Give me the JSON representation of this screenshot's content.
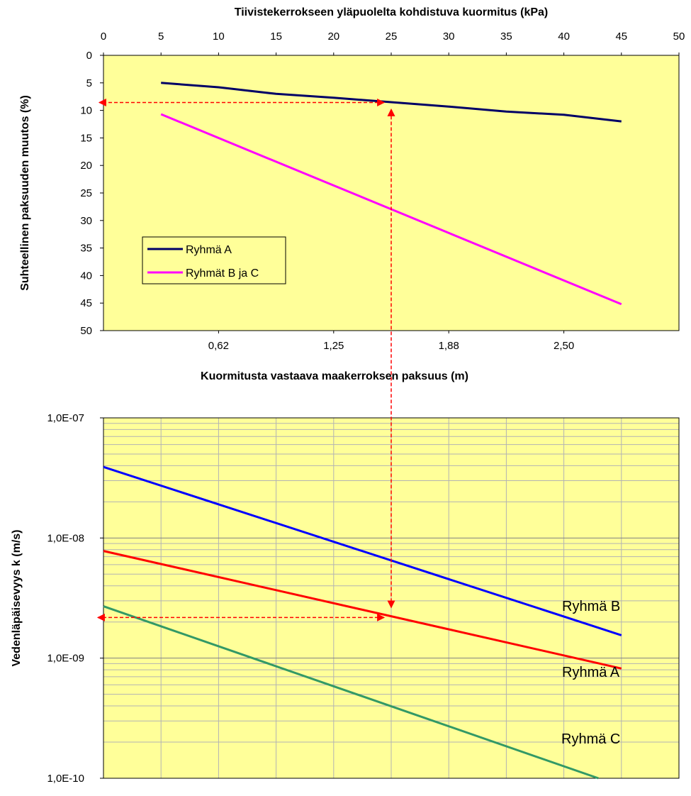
{
  "chart_data": [
    {
      "type": "line",
      "title": "Tiivistekerrokseen yläpuolelta kohdistuva kuormitus (kPa)",
      "ylabel": "Suhteellinen paksuuden muutos (%)",
      "xlabel": "Kuormitusta vastaava maakerroksen paksuus (m)",
      "x_top_ticks": [
        "0",
        "5",
        "10",
        "15",
        "20",
        "25",
        "30",
        "35",
        "40",
        "45",
        "50"
      ],
      "x_bottom_ticks": [
        "0,62",
        "1,25",
        "1,88",
        "2,50"
      ],
      "y_ticks": [
        "0",
        "5",
        "10",
        "15",
        "20",
        "25",
        "30",
        "35",
        "40",
        "45",
        "50"
      ],
      "xlim": [
        0,
        50
      ],
      "ylim": [
        0,
        50
      ],
      "y_inverted": true,
      "background": "#ffff99",
      "legend_position": "middle-left",
      "series": [
        {
          "name": "Ryhmä A",
          "color": "#000066",
          "x": [
            5,
            10,
            15,
            20,
            25,
            30,
            35,
            40,
            45
          ],
          "y": [
            5,
            5.8,
            7,
            7.7,
            8.5,
            9.3,
            10.2,
            10.8,
            12
          ]
        },
        {
          "name": "Ryhmät B ja C",
          "color": "#ff00ff",
          "x": [
            5,
            45
          ],
          "y": [
            10.7,
            45.2
          ]
        }
      ],
      "guide": {
        "color": "#ff0000",
        "x": 25,
        "y": 8.5
      }
    },
    {
      "type": "line",
      "ylabel": "Vedenläpäisevyys k (m/s)",
      "y_scale": "log",
      "y_ticks": [
        "1,0E-07",
        "1,0E-08",
        "1,0E-09",
        "1,0E-10"
      ],
      "ylim": [
        1e-10,
        1e-07
      ],
      "xlim": [
        0,
        50
      ],
      "background": "#ffff99",
      "series": [
        {
          "name": "Ryhmä B",
          "color": "#0000ff",
          "x": [
            0,
            45
          ],
          "y": [
            3.9e-08,
            1.55e-09
          ]
        },
        {
          "name": "Ryhmä A",
          "color": "#ff0000",
          "x": [
            0,
            45
          ],
          "y": [
            7.8e-09,
            8.2e-10
          ]
        },
        {
          "name": "Ryhmä C",
          "color": "#339966",
          "x": [
            0,
            43
          ],
          "y": [
            2.7e-09,
            1e-10
          ]
        }
      ],
      "guide": {
        "color": "#ff0000",
        "x": 25,
        "y": 2.3e-09
      }
    }
  ]
}
